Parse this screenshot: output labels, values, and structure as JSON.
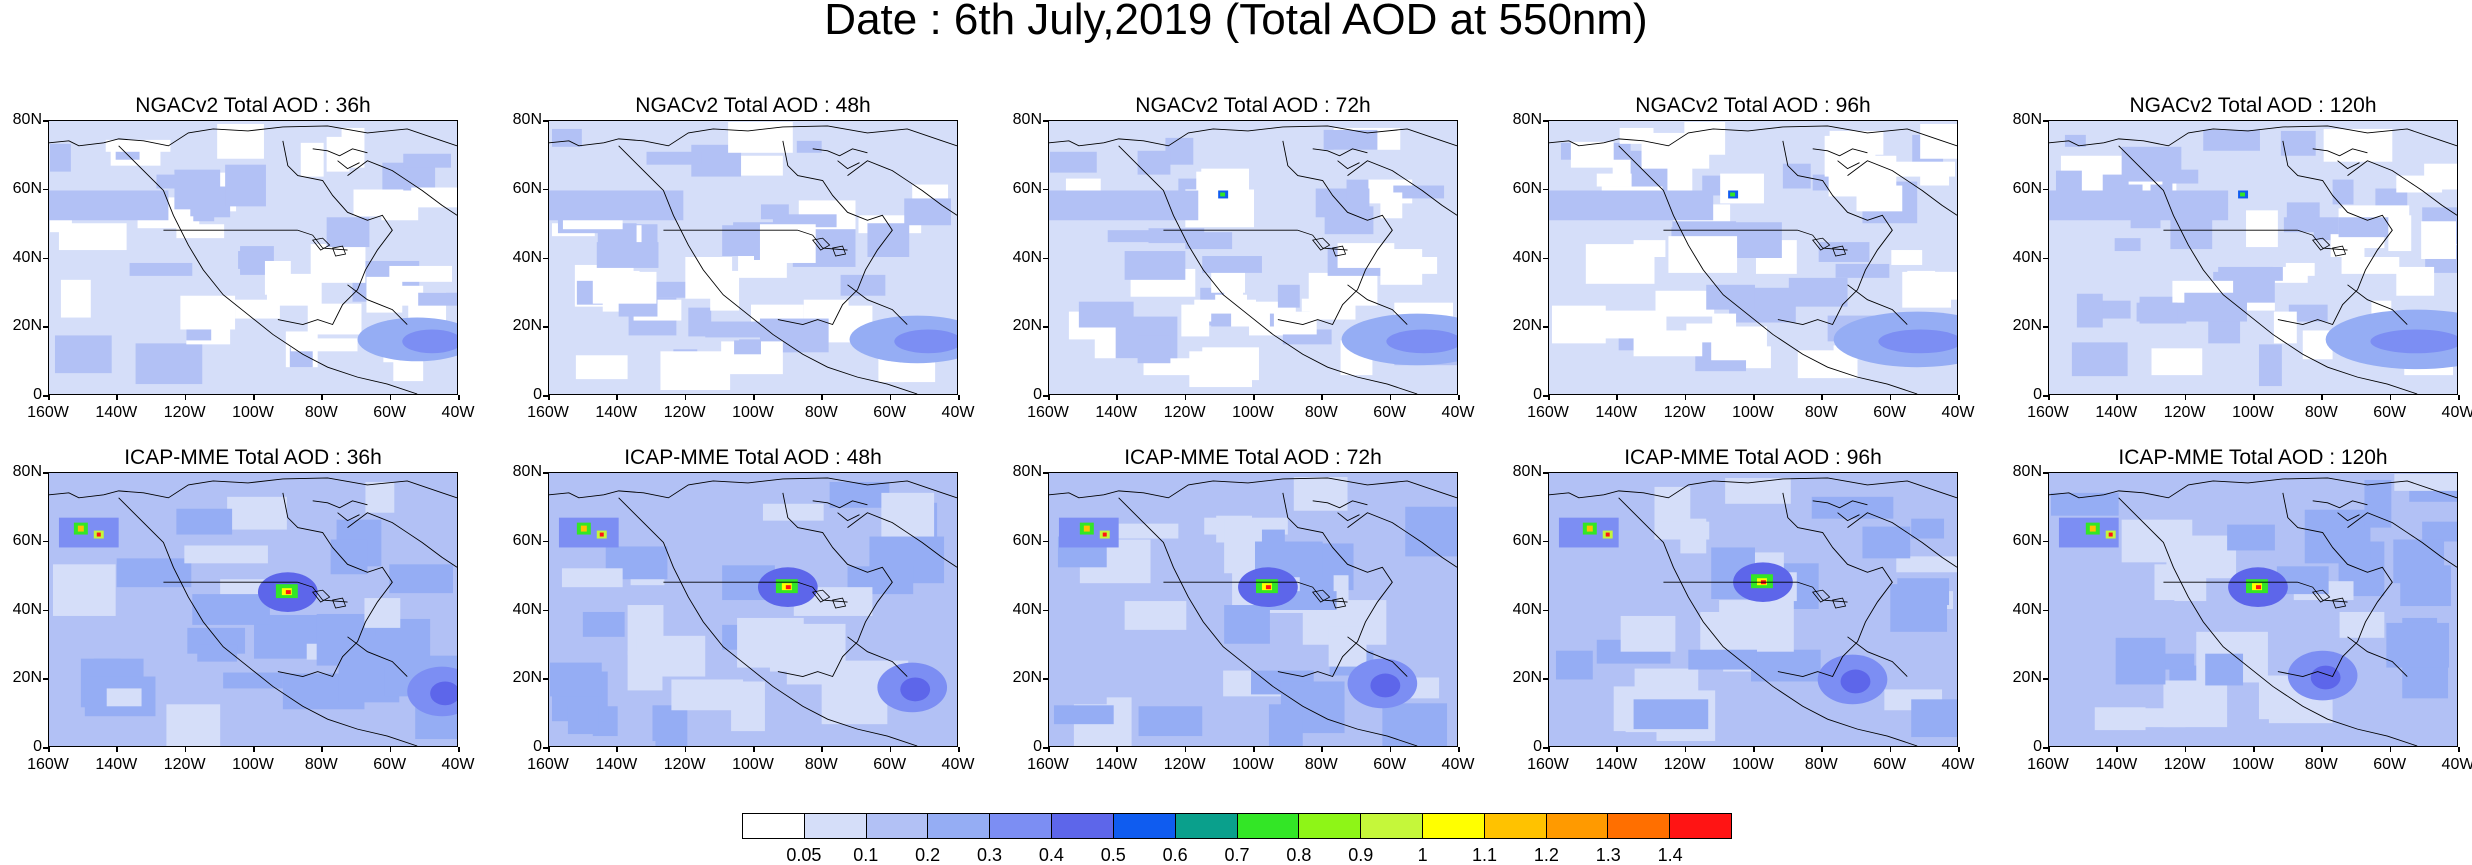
{
  "title": "Date : 6th July,2019 (Total AOD at 550nm)",
  "axes": {
    "y_ticks": [
      "80N",
      "60N",
      "40N",
      "20N",
      "0"
    ],
    "x_ticks": [
      "160W",
      "140W",
      "120W",
      "100W",
      "80W",
      "60W",
      "40W"
    ]
  },
  "rows": [
    {
      "model": "NGACv2",
      "panels": [
        {
          "title": "NGACv2 Total AOD : 36h"
        },
        {
          "title": "NGACv2 Total AOD : 48h"
        },
        {
          "title": "NGACv2 Total AOD : 72h"
        },
        {
          "title": "NGACv2 Total AOD : 96h"
        },
        {
          "title": "NGACv2 Total AOD : 120h"
        }
      ]
    },
    {
      "model": "ICAP-MME",
      "panels": [
        {
          "title": "ICAP-MME Total AOD : 36h"
        },
        {
          "title": "ICAP-MME Total AOD : 48h"
        },
        {
          "title": "ICAP-MME Total AOD : 72h"
        },
        {
          "title": "ICAP-MME Total AOD : 96h"
        },
        {
          "title": "ICAP-MME Total AOD : 120h"
        }
      ]
    }
  ],
  "colorbar": {
    "labels": [
      "0.05",
      "0.1",
      "0.2",
      "0.3",
      "0.4",
      "0.5",
      "0.6",
      "0.7",
      "0.8",
      "0.9",
      "1",
      "1.1",
      "1.2",
      "1.3",
      "1.4"
    ],
    "colors": [
      "#ffffff",
      "#d5def9",
      "#b2c1f5",
      "#95adf4",
      "#7c8ef3",
      "#5d66ea",
      "#0f5cf0",
      "#0aa08c",
      "#33e626",
      "#8ef517",
      "#c5f73a",
      "#ffff00",
      "#ffc200",
      "#ff9a00",
      "#ff6f00",
      "#ff1414"
    ]
  }
}
